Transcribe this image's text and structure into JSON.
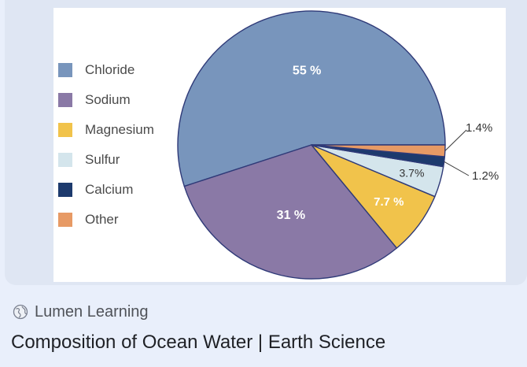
{
  "chart_data": {
    "type": "pie",
    "title": "",
    "categories": [
      "Chloride",
      "Sodium",
      "Magnesium",
      "Sulfur",
      "Calcium",
      "Other"
    ],
    "values": [
      55,
      31,
      7.7,
      3.7,
      1.2,
      1.4
    ],
    "data_labels": [
      "55 %",
      "31 %",
      "7.7 %",
      "3.7%",
      "1.2%",
      "1.4%"
    ],
    "colors": [
      "#7895bc",
      "#8a79a6",
      "#f1c34b",
      "#d4e5ec",
      "#1d3a6d",
      "#e79a65"
    ],
    "legend_position": "left"
  },
  "source": {
    "icon": "globe-icon",
    "name": "Lumen Learning"
  },
  "page": {
    "title": "Composition of Ocean Water | Earth Science"
  }
}
